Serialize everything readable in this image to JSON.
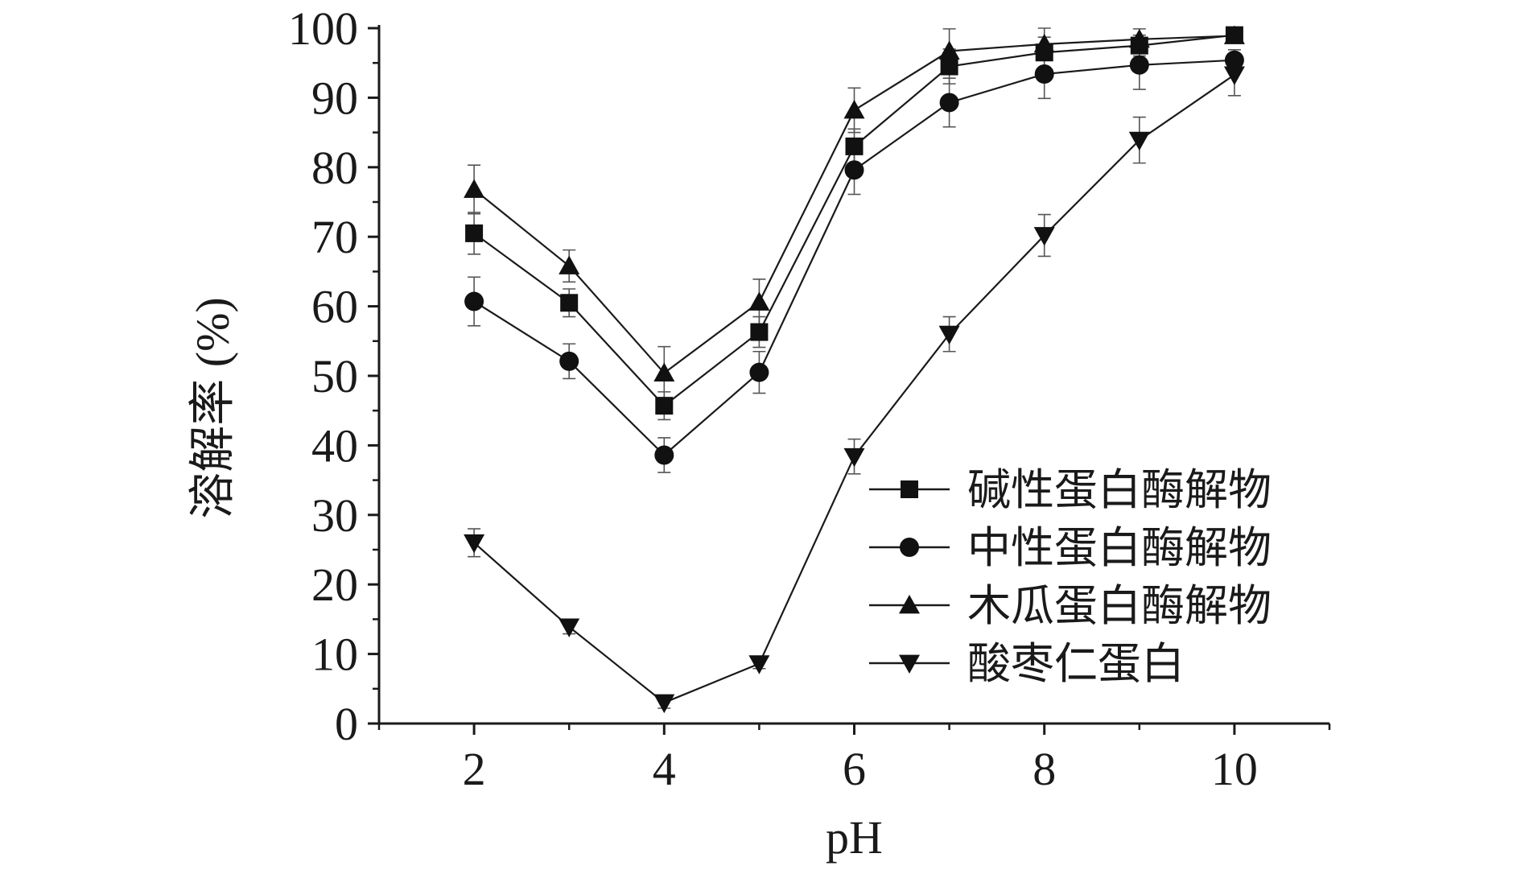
{
  "chart_data": {
    "type": "line",
    "title": "",
    "xlabel": "pH",
    "ylabel": "溶解率 (%)",
    "xlim": [
      1,
      11
    ],
    "ylim": [
      0,
      100
    ],
    "xticks": [
      2,
      4,
      6,
      8,
      10
    ],
    "yticks": [
      0,
      10,
      20,
      30,
      40,
      50,
      60,
      70,
      80,
      90,
      100
    ],
    "x": [
      2,
      3,
      4,
      5,
      6,
      7,
      8,
      9,
      10
    ],
    "grid": false,
    "legend_position": "bottom-right",
    "series": [
      {
        "name": "碱性蛋白酶解物",
        "marker": "square",
        "values": [
          70.5,
          60.5,
          45.7,
          56.3,
          83.0,
          94.5,
          96.5,
          97.5,
          99.0
        ],
        "errors": [
          3.0,
          2.0,
          2.0,
          2.2,
          2.5,
          2.5,
          2.2,
          1.5,
          1.0
        ]
      },
      {
        "name": "中性蛋白酶解物",
        "marker": "circle",
        "values": [
          60.7,
          52.1,
          38.6,
          50.5,
          79.6,
          89.3,
          93.4,
          94.7,
          95.4
        ],
        "errors": [
          3.5,
          2.5,
          2.5,
          3.0,
          3.5,
          3.5,
          3.5,
          3.5,
          1.5
        ]
      },
      {
        "name": "木瓜蛋白酶解物",
        "marker": "triangle-up",
        "values": [
          76.8,
          65.8,
          50.4,
          60.6,
          88.2,
          96.7,
          97.7,
          98.4,
          98.9
        ],
        "errors": [
          3.5,
          2.3,
          3.8,
          3.3,
          3.2,
          3.2,
          2.3,
          1.5,
          1.0
        ]
      },
      {
        "name": "酸枣仁蛋白",
        "marker": "triangle-down",
        "values": [
          26.0,
          13.9,
          3.0,
          8.6,
          38.4,
          56.0,
          70.2,
          83.9,
          93.3
        ],
        "errors": [
          2.0,
          1.0,
          0.8,
          0.7,
          2.5,
          2.5,
          3.0,
          3.3,
          3.0
        ]
      }
    ],
    "colors": {
      "line": "#1a1a1a",
      "marker": "#111111",
      "axis": "#1a1a1a",
      "errorbar": "#555555"
    }
  }
}
